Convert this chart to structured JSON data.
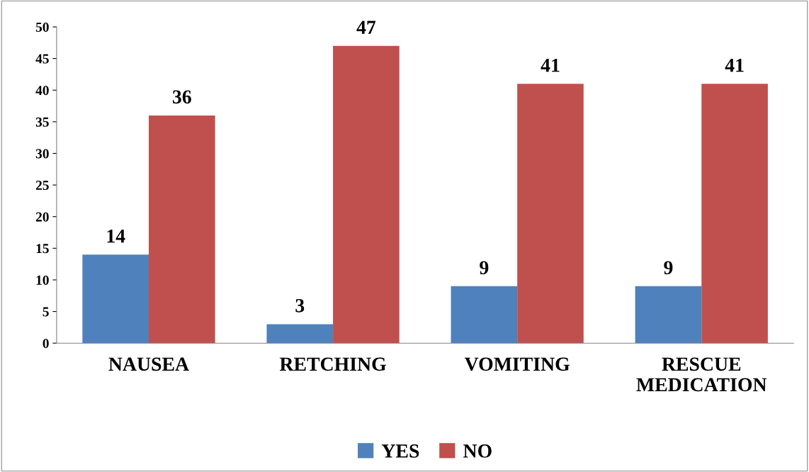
{
  "chart_data": {
    "type": "bar",
    "categories": [
      "NAUSEA",
      "RETCHING",
      "VOMITING",
      "RESCUE\nMEDICATION"
    ],
    "series": [
      {
        "name": "YES",
        "color": "#4f81bd",
        "values": [
          14,
          3,
          9,
          9
        ]
      },
      {
        "name": "NO",
        "color": "#c0504d",
        "values": [
          36,
          47,
          41,
          41
        ]
      }
    ],
    "ylim": [
      0,
      50
    ],
    "yticks": [
      0,
      5,
      10,
      15,
      20,
      25,
      30,
      35,
      40,
      45,
      50
    ],
    "grid": false,
    "legend": "bottom",
    "data_labels": true
  }
}
